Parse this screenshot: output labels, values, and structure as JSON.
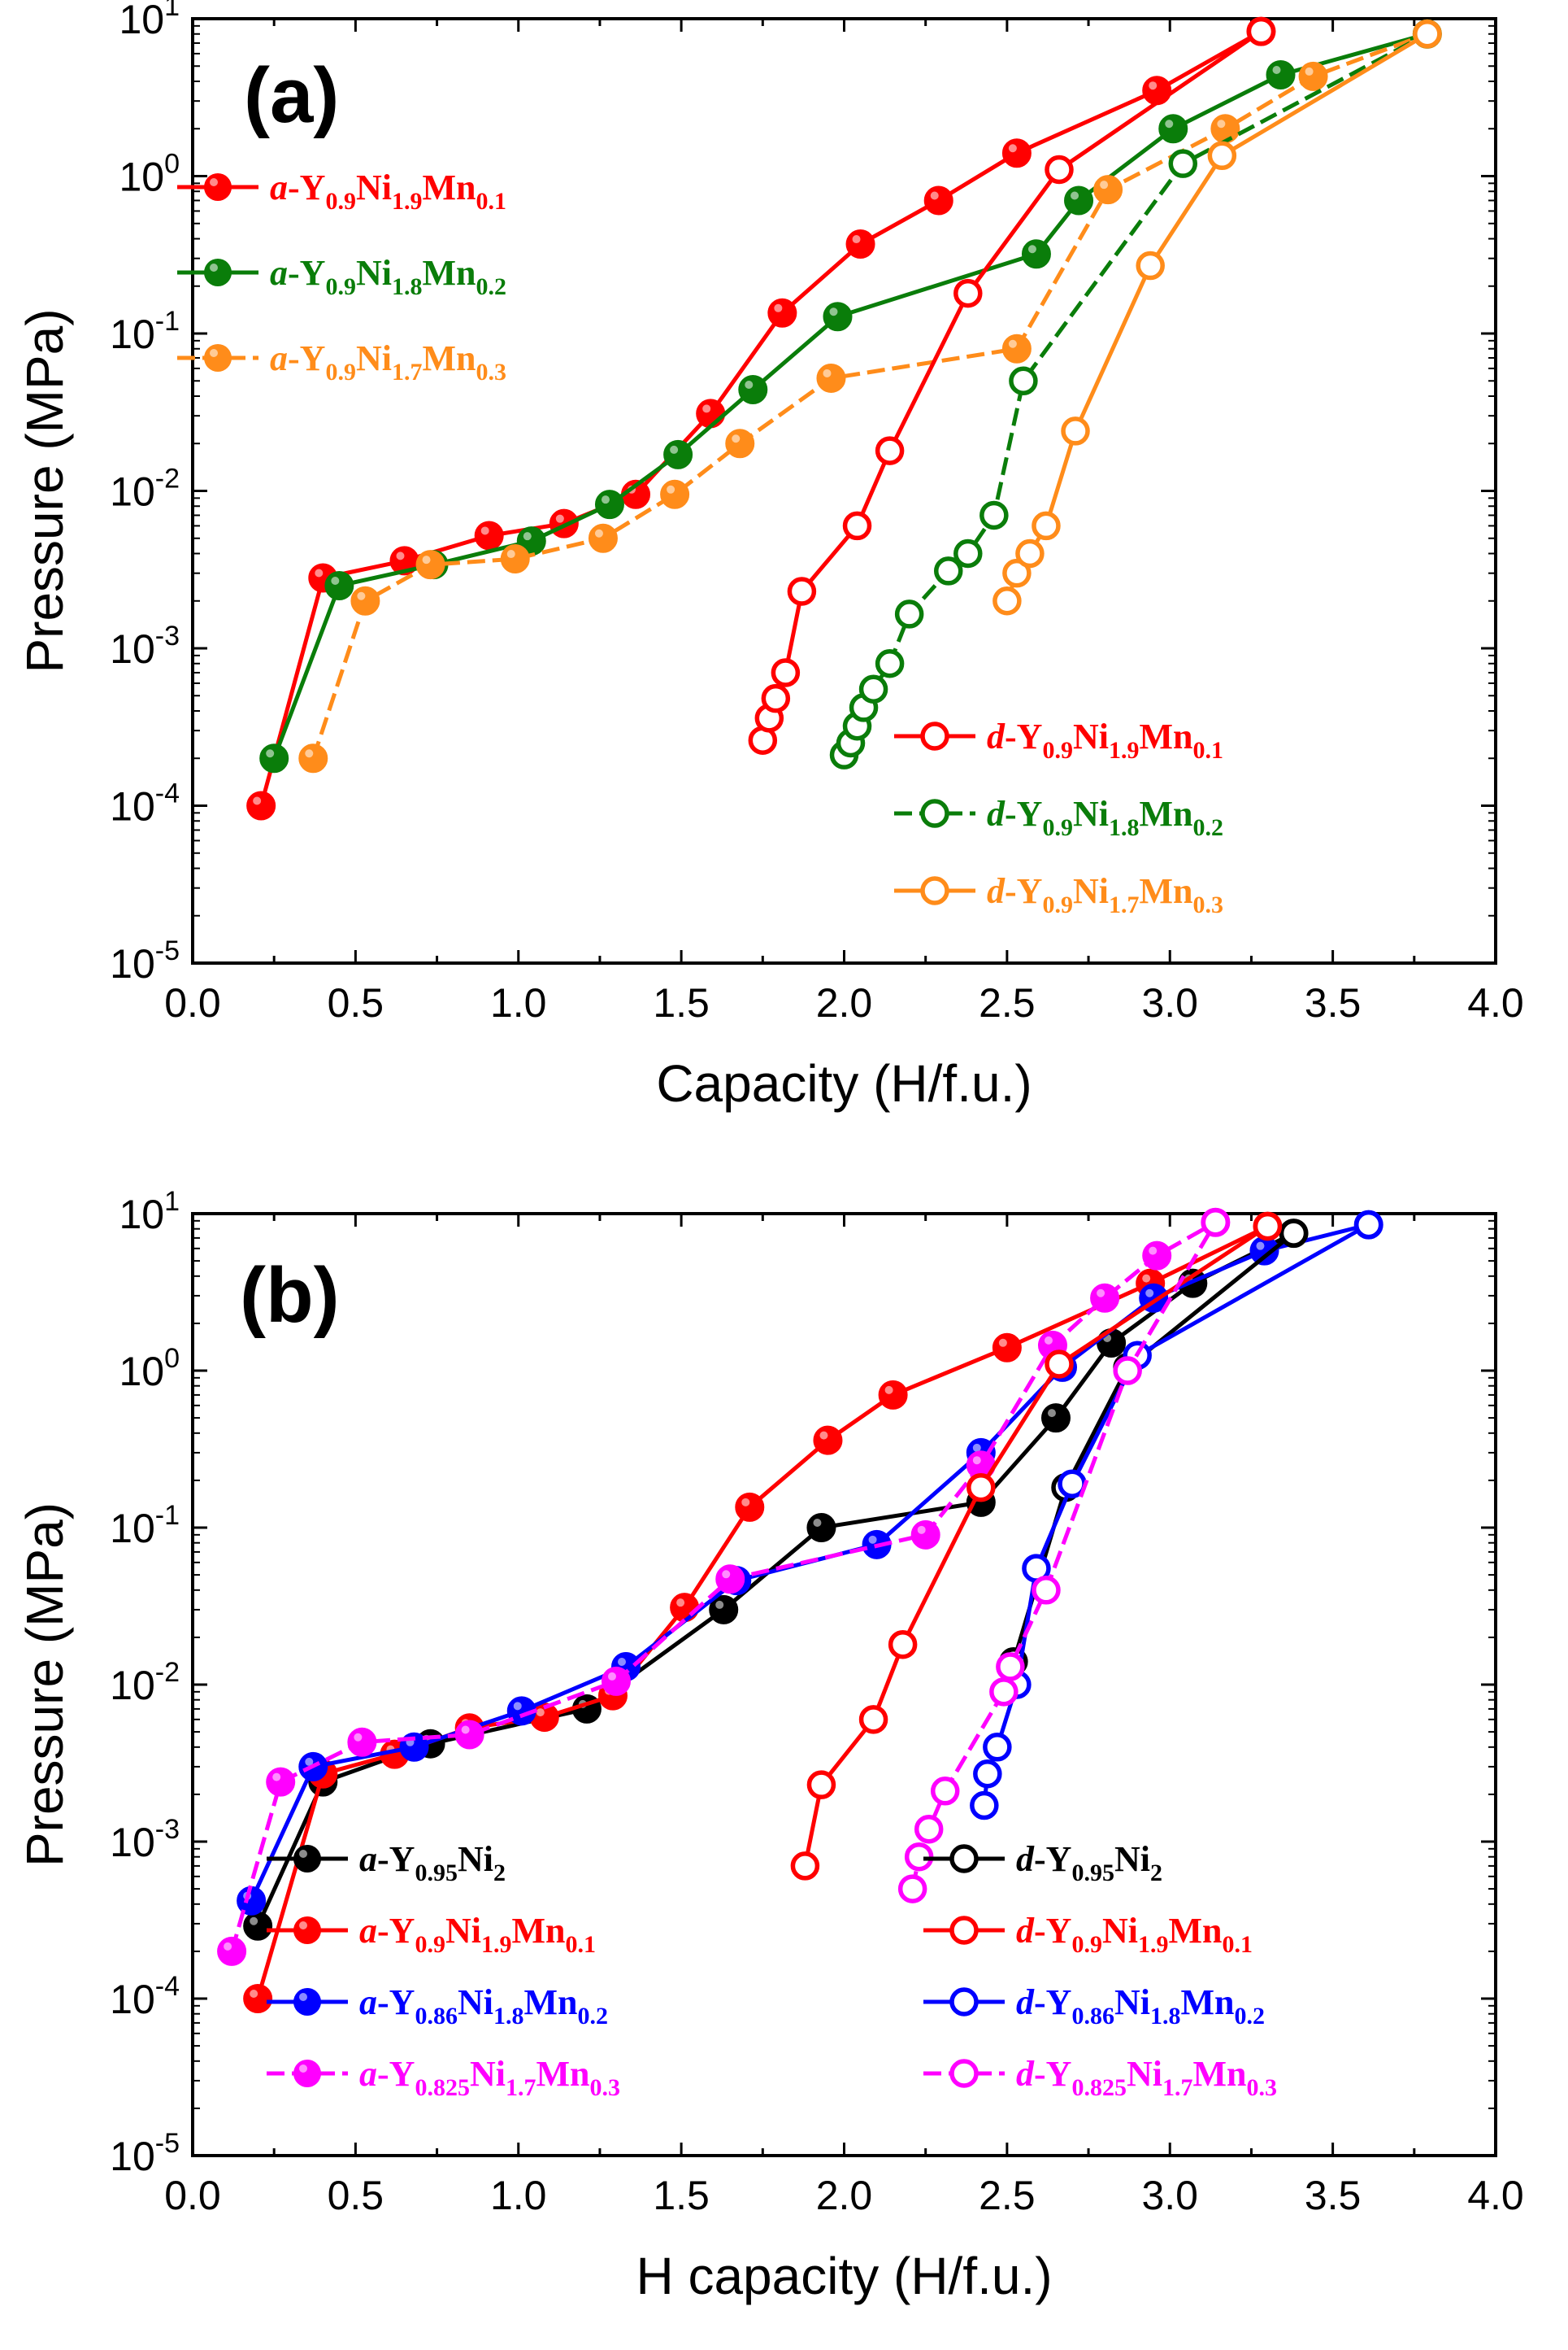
{
  "chart_data": [
    {
      "type": "scatter",
      "panel_label": "(a)",
      "xlabel": "Capacity (H/f.u.)",
      "ylabel": "Pressure (MPa)",
      "xlim": [
        0.0,
        4.0
      ],
      "ylim_exp": [
        -5,
        1
      ],
      "yscale": "log",
      "x_ticks": [
        "0.0",
        "0.5",
        "1.0",
        "1.5",
        "2.0",
        "2.5",
        "3.0",
        "3.5",
        "4.0"
      ],
      "y_ticks": [
        {
          "base": "10",
          "exp": "1"
        },
        {
          "base": "10",
          "exp": "0"
        },
        {
          "base": "10",
          "exp": "-1"
        },
        {
          "base": "10",
          "exp": "-2"
        },
        {
          "base": "10",
          "exp": "-3"
        },
        {
          "base": "10",
          "exp": "-4"
        },
        {
          "base": "10",
          "exp": "-5"
        }
      ],
      "legend_upper_left": [
        {
          "name": "a-Y0.9Ni1.9Mn0.1",
          "prefix": "a",
          "parts": [
            {
              "t": "Y",
              "s": "0.9"
            },
            {
              "t": "Ni",
              "s": "1.9"
            },
            {
              "t": "Mn",
              "s": "0.1"
            }
          ]
        },
        {
          "name": "a-Y0.9Ni1.8Mn0.2",
          "prefix": "a",
          "parts": [
            {
              "t": "Y",
              "s": "0.9"
            },
            {
              "t": "Ni",
              "s": "1.8"
            },
            {
              "t": "Mn",
              "s": "0.2"
            }
          ]
        },
        {
          "name": "a-Y0.9Ni1.7Mn0.3",
          "prefix": "a",
          "parts": [
            {
              "t": "Y",
              "s": "0.9"
            },
            {
              "t": "Ni",
              "s": "1.7"
            },
            {
              "t": "Mn",
              "s": "0.3"
            }
          ]
        }
      ],
      "legend_lower_right": [
        {
          "name": "d-Y0.9Ni1.9Mn0.1",
          "prefix": "d",
          "parts": [
            {
              "t": "Y",
              "s": "0.9"
            },
            {
              "t": "Ni",
              "s": "1.9"
            },
            {
              "t": "Mn",
              "s": "0.1"
            }
          ]
        },
        {
          "name": "d-Y0.9Ni1.8Mn0.2",
          "prefix": "d",
          "parts": [
            {
              "t": "Y",
              "s": "0.9"
            },
            {
              "t": "Ni",
              "s": "1.8"
            },
            {
              "t": "Mn",
              "s": "0.2"
            }
          ]
        },
        {
          "name": "d-Y0.9Ni1.7Mn0.3",
          "prefix": "d",
          "parts": [
            {
              "t": "Y",
              "s": "0.9"
            },
            {
              "t": "Ni",
              "s": "1.7"
            },
            {
              "t": "Mn",
              "s": "0.3"
            }
          ]
        }
      ],
      "series": [
        {
          "name": "a-Y0.9Ni1.9Mn0.1",
          "color": "#ff0000",
          "filled": true,
          "dashed": false,
          "x": [
            0.21,
            0.4,
            0.65,
            0.91,
            1.14,
            1.36,
            1.59,
            1.81,
            2.05,
            2.29,
            2.53,
            2.96,
            3.28
          ],
          "y": [
            0.0001,
            0.0028,
            0.0036,
            0.0052,
            0.0062,
            0.0095,
            0.031,
            0.135,
            0.37,
            0.7,
            1.4,
            3.5,
            8.3
          ]
        },
        {
          "name": "a-Y0.9Ni1.8Mn0.2",
          "color": "#0a7d0a",
          "filled": true,
          "dashed": false,
          "x": [
            0.25,
            0.45,
            0.74,
            1.04,
            1.28,
            1.49,
            1.72,
            1.98,
            2.59,
            2.72,
            3.01,
            3.34,
            3.79
          ],
          "y": [
            0.0002,
            0.0025,
            0.0034,
            0.0048,
            0.0082,
            0.017,
            0.044,
            0.128,
            0.32,
            0.7,
            2.0,
            4.4,
            8.0
          ]
        },
        {
          "name": "a-Y0.9Ni1.7Mn0.3",
          "color": "#ff8c1a",
          "filled": true,
          "dashed": true,
          "x": [
            0.37,
            0.53,
            0.73,
            0.99,
            1.26,
            1.48,
            1.68,
            1.96,
            2.53,
            2.81,
            3.17,
            3.44,
            3.79
          ],
          "y": [
            0.0002,
            0.002,
            0.0034,
            0.0037,
            0.005,
            0.0095,
            0.02,
            0.052,
            0.08,
            0.82,
            2.0,
            4.3,
            8.0
          ]
        },
        {
          "name": "d-Y0.9Ni1.9Mn0.1",
          "color": "#ff0000",
          "filled": false,
          "dashed": false,
          "x": [
            1.75,
            1.77,
            1.79,
            1.82,
            1.87,
            2.04,
            2.14,
            2.38,
            2.66,
            3.28
          ],
          "y": [
            0.00026,
            0.00036,
            0.00048,
            0.0007,
            0.0023,
            0.006,
            0.018,
            0.18,
            1.1,
            8.3
          ]
        },
        {
          "name": "d-Y0.9Ni1.8Mn0.2",
          "color": "#0a7d0a",
          "filled": false,
          "dashed": true,
          "x": [
            2.0,
            2.02,
            2.04,
            2.06,
            2.09,
            2.14,
            2.2,
            2.32,
            2.38,
            2.46,
            2.55,
            3.04,
            3.79
          ],
          "y": [
            0.00021,
            0.00025,
            0.00032,
            0.00042,
            0.00055,
            0.0008,
            0.00165,
            0.0031,
            0.004,
            0.007,
            0.05,
            1.2,
            8.0
          ]
        },
        {
          "name": "d-Y0.9Ni1.7Mn0.3",
          "color": "#ff8c1a",
          "filled": false,
          "dashed": false,
          "x": [
            2.5,
            2.53,
            2.57,
            2.62,
            2.71,
            2.94,
            3.16,
            3.79
          ],
          "y": [
            0.002,
            0.003,
            0.004,
            0.006,
            0.024,
            0.27,
            1.35,
            8.0
          ]
        }
      ]
    },
    {
      "type": "scatter",
      "panel_label": "(b)",
      "xlabel": "H capacity (H/f.u.)",
      "ylabel": "Pressure (MPa)",
      "xlim": [
        0.0,
        4.0
      ],
      "ylim_exp": [
        -5,
        1
      ],
      "yscale": "log",
      "x_ticks": [
        "0.0",
        "0.5",
        "1.0",
        "1.5",
        "2.0",
        "2.5",
        "3.0",
        "3.5",
        "4.0"
      ],
      "y_ticks": [
        {
          "base": "10",
          "exp": "1"
        },
        {
          "base": "10",
          "exp": "0"
        },
        {
          "base": "10",
          "exp": "-1"
        },
        {
          "base": "10",
          "exp": "-2"
        },
        {
          "base": "10",
          "exp": "-3"
        },
        {
          "base": "10",
          "exp": "-4"
        },
        {
          "base": "10",
          "exp": "-5"
        }
      ],
      "legend_lower_left": [
        {
          "name": "a-Y0.95Ni2",
          "prefix": "a",
          "parts": [
            {
              "t": "Y",
              "s": "0.95"
            },
            {
              "t": "Ni",
              "s": "2"
            }
          ]
        },
        {
          "name": "a-Y0.9Ni1.9Mn0.1",
          "prefix": "a",
          "parts": [
            {
              "t": "Y",
              "s": "0.9"
            },
            {
              "t": "Ni",
              "s": "1.9"
            },
            {
              "t": "Mn",
              "s": "0.1"
            }
          ]
        },
        {
          "name": "a-Y0.86Ni1.8Mn0.2",
          "prefix": "a",
          "parts": [
            {
              "t": "Y",
              "s": "0.86"
            },
            {
              "t": "Ni",
              "s": "1.8"
            },
            {
              "t": "Mn",
              "s": "0.2"
            }
          ]
        },
        {
          "name": "a-Y0.825Ni1.7Mn0.3",
          "prefix": "a",
          "parts": [
            {
              "t": "Y",
              "s": "0.825"
            },
            {
              "t": "Ni",
              "s": "1.7"
            },
            {
              "t": "Mn",
              "s": "0.3"
            }
          ]
        }
      ],
      "legend_lower_right": [
        {
          "name": "d-Y0.95Ni2",
          "prefix": "d",
          "parts": [
            {
              "t": "Y",
              "s": "0.95"
            },
            {
              "t": "Ni",
              "s": "2"
            }
          ]
        },
        {
          "name": "d-Y0.9Ni1.9Mn0.1",
          "prefix": "d",
          "parts": [
            {
              "t": "Y",
              "s": "0.9"
            },
            {
              "t": "Ni",
              "s": "1.9"
            },
            {
              "t": "Mn",
              "s": "0.1"
            }
          ]
        },
        {
          "name": "d-Y0.86Ni1.8Mn0.2",
          "prefix": "d",
          "parts": [
            {
              "t": "Y",
              "s": "0.86"
            },
            {
              "t": "Ni",
              "s": "1.8"
            },
            {
              "t": "Mn",
              "s": "0.2"
            }
          ]
        },
        {
          "name": "d-Y0.825Ni1.7Mn0.3",
          "prefix": "d",
          "parts": [
            {
              "t": "Y",
              "s": "0.825"
            },
            {
              "t": "Ni",
              "s": "1.7"
            },
            {
              "t": "Mn",
              "s": "0.3"
            }
          ]
        }
      ],
      "series": [
        {
          "name": "a-Y0.95Ni2",
          "color": "#000000",
          "filled": true,
          "dashed": false,
          "x": [
            0.2,
            0.4,
            0.73,
            1.21,
            1.63,
            1.93,
            2.42,
            2.65,
            2.82,
            3.07,
            3.38
          ],
          "y": [
            0.00029,
            0.0024,
            0.0042,
            0.007,
            0.03,
            0.1,
            0.145,
            0.5,
            1.5,
            3.6,
            7.5
          ]
        },
        {
          "name": "a-Y0.9Ni1.9Mn0.1",
          "color": "#ff0000",
          "filled": true,
          "dashed": false,
          "x": [
            0.2,
            0.4,
            0.62,
            0.85,
            1.08,
            1.29,
            1.51,
            1.71,
            1.95,
            2.15,
            2.5,
            2.94,
            3.3
          ],
          "y": [
            0.0001,
            0.0027,
            0.0036,
            0.0053,
            0.0062,
            0.0085,
            0.031,
            0.135,
            0.36,
            0.7,
            1.4,
            3.6,
            8.3
          ]
        },
        {
          "name": "a-Y0.86Ni1.8Mn0.2",
          "color": "#0000ff",
          "filled": true,
          "dashed": false,
          "x": [
            0.18,
            0.37,
            0.68,
            1.01,
            1.33,
            1.67,
            2.1,
            2.42,
            2.67,
            2.95,
            3.29,
            3.61
          ],
          "y": [
            0.00042,
            0.003,
            0.004,
            0.0068,
            0.013,
            0.046,
            0.078,
            0.3,
            1.05,
            2.9,
            5.8,
            8.5
          ]
        },
        {
          "name": "a-Y0.825Ni1.7Mn0.3",
          "color": "#ff00ff",
          "filled": true,
          "dashed": true,
          "x": [
            0.12,
            0.27,
            0.52,
            0.85,
            1.3,
            1.65,
            2.25,
            2.42,
            2.64,
            2.8,
            2.96,
            3.14
          ],
          "y": [
            0.0002,
            0.0024,
            0.0043,
            0.0048,
            0.0105,
            0.047,
            0.09,
            0.25,
            1.45,
            2.9,
            5.4,
            8.8
          ]
        },
        {
          "name": "d-Y0.95Ni2",
          "color": "#000000",
          "filled": false,
          "dashed": false,
          "x": [
            2.52,
            2.68,
            2.87,
            3.38
          ],
          "y": [
            0.014,
            0.18,
            1.05,
            7.5
          ]
        },
        {
          "name": "d-Y0.9Ni1.9Mn0.1",
          "color": "#ff0000",
          "filled": false,
          "dashed": false,
          "x": [
            1.88,
            1.93,
            2.09,
            2.18,
            2.42,
            2.66,
            3.3
          ],
          "y": [
            0.0007,
            0.0023,
            0.006,
            0.018,
            0.18,
            1.1,
            8.3
          ]
        },
        {
          "name": "d-Y0.86Ni1.8Mn0.2",
          "color": "#0000ff",
          "filled": false,
          "dashed": false,
          "x": [
            2.43,
            2.44,
            2.47,
            2.53,
            2.59,
            2.7,
            2.9,
            3.61
          ],
          "y": [
            0.0017,
            0.0027,
            0.004,
            0.01,
            0.055,
            0.19,
            1.25,
            8.5
          ]
        },
        {
          "name": "d-Y0.825Ni1.7Mn0.3",
          "color": "#ff00ff",
          "filled": false,
          "dashed": true,
          "x": [
            2.21,
            2.23,
            2.26,
            2.31,
            2.49,
            2.51,
            2.62,
            2.87,
            3.14
          ],
          "y": [
            0.0005,
            0.0008,
            0.0012,
            0.0021,
            0.009,
            0.013,
            0.04,
            1.0,
            8.8
          ]
        }
      ]
    }
  ]
}
